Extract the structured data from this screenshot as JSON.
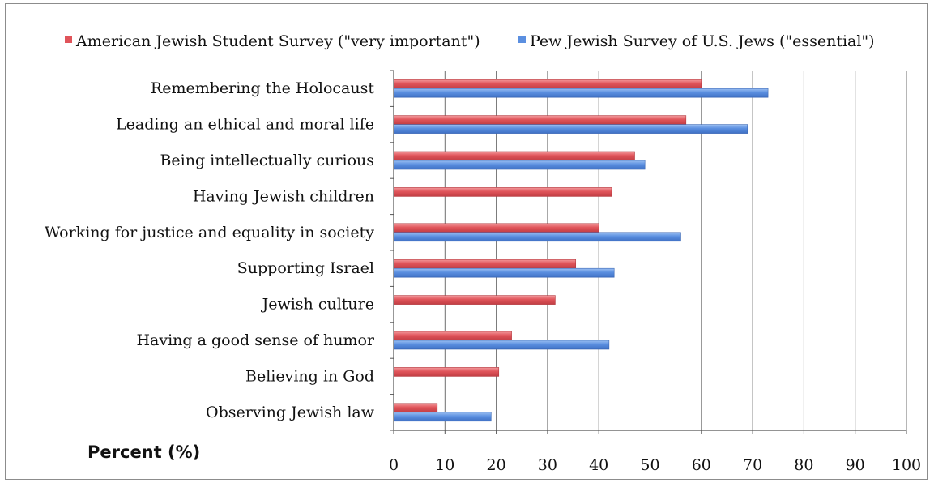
{
  "chart_data": {
    "type": "bar",
    "orientation": "horizontal",
    "categories": [
      "Remembering the Holocaust",
      "Leading an ethical and moral life",
      "Being intellectually curious",
      "Having Jewish children",
      "Working for justice and equality in society",
      "Supporting Israel",
      "Jewish culture",
      "Having a good sense of humor",
      "Believing in God",
      "Observing Jewish law"
    ],
    "series": [
      {
        "name": "American Jewish Student Survey (\"very important\")",
        "color": "#e0545a",
        "values": [
          60,
          57,
          47,
          42.5,
          40,
          35.5,
          31.5,
          23,
          20.5,
          8.5
        ]
      },
      {
        "name": "Pew Jewish Survey of U.S. Jews (\"essential\")",
        "color": "#5b8fe0",
        "values": [
          73,
          69,
          49,
          null,
          56,
          43,
          null,
          42,
          null,
          19
        ]
      }
    ],
    "xlabel": "Percent (%)",
    "xlim": [
      0,
      100
    ],
    "xticks": [
      "0",
      "10",
      "20",
      "30",
      "40",
      "50",
      "60",
      "70",
      "80",
      "90",
      "100"
    ],
    "grid": true,
    "legend_position": "top"
  }
}
